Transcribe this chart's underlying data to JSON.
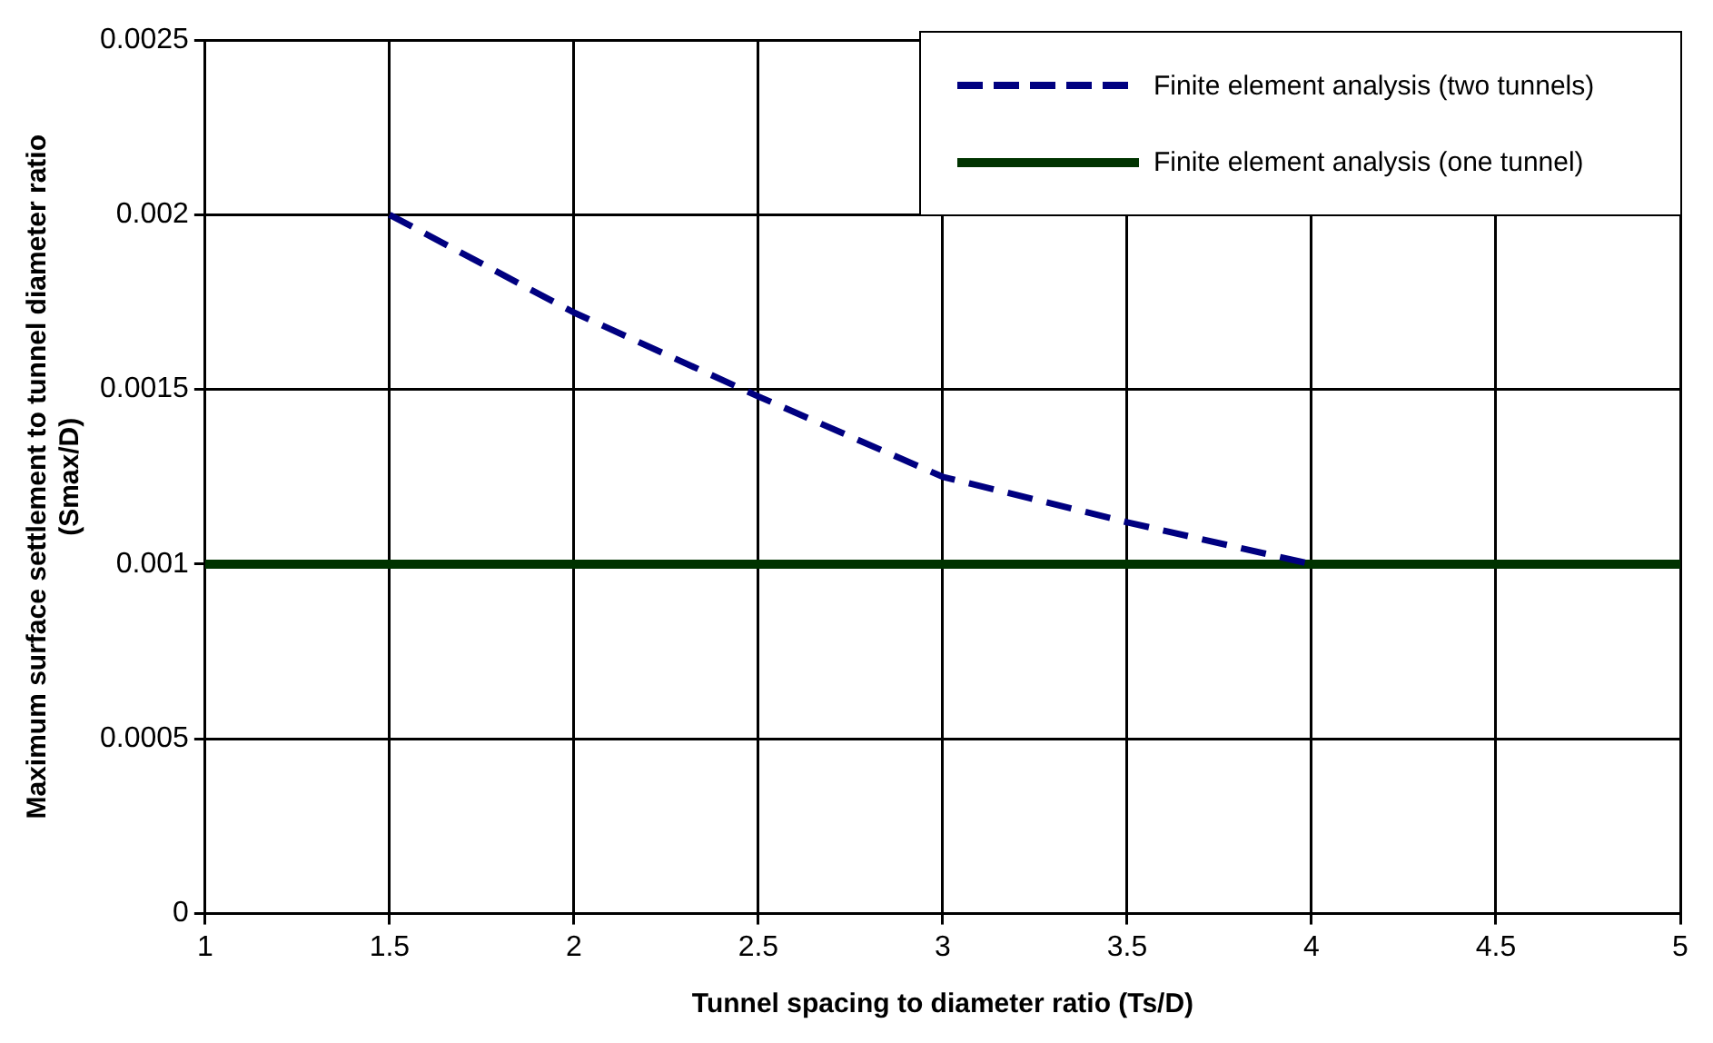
{
  "chart_data": {
    "type": "line",
    "xlabel": "Tunnel spacing to diameter ratio (Ts/D)",
    "ylabel": "Maximum surface settlement to tunnel diameter ratio\n(Smax/D)",
    "series": [
      {
        "name": "Finite element analysis (two tunnels)",
        "color": "#000080",
        "line_style": "dashed",
        "x": [
          1.5,
          2,
          2.5,
          3,
          3.5,
          4
        ],
        "values": [
          0.002,
          0.00172,
          0.00148,
          0.00125,
          0.00112,
          0.001
        ]
      },
      {
        "name": "Finite element analysis (one tunnel)",
        "color": "#003300",
        "line_style": "solid",
        "x": [
          1,
          5
        ],
        "values": [
          0.001,
          0.001
        ]
      }
    ],
    "xlim": [
      1,
      5
    ],
    "xticks": [
      1,
      1.5,
      2,
      2.5,
      3,
      3.5,
      4,
      4.5,
      5
    ],
    "ylim": [
      0,
      0.0025
    ],
    "yticks": [
      0,
      0.0005,
      0.001,
      0.0015,
      0.002,
      0.0025
    ],
    "grid": true,
    "legend": "top right",
    "marker": "none"
  }
}
